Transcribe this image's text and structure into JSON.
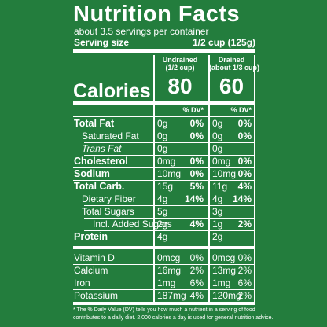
{
  "header": {
    "title": "Nutrition Facts",
    "servings": "about 3.5 servings per container",
    "serving_size_label": "Serving size",
    "serving_size": "1/2 cup (125g)"
  },
  "columns": [
    {
      "name": "Undrained",
      "portion": "(1/2 cup)",
      "calories": "80"
    },
    {
      "name": "Drained",
      "portion": "(about 1/3 cup)",
      "calories": "60"
    }
  ],
  "calories_label": "Calories",
  "dv_label": "% DV*",
  "rows": [
    [
      "Total Fat",
      "0g",
      "0%",
      "0g",
      "0%"
    ],
    [
      "Saturated Fat",
      "0g",
      "0%",
      "0g",
      "0%"
    ],
    [
      "Trans Fat",
      "0g",
      null,
      "0g",
      null
    ],
    [
      "Cholesterol",
      "0mg",
      "0%",
      "0mg",
      "0%"
    ],
    [
      "Sodium",
      "10mg",
      "0%",
      "10mg",
      "0%"
    ],
    [
      "Total Carb.",
      "15g",
      "5%",
      "11g",
      "4%"
    ],
    [
      "Dietary Fiber",
      "4g",
      "14%",
      "4g",
      "14%"
    ],
    [
      "Total Sugars",
      "5g",
      null,
      "3g",
      null
    ],
    [
      "Incl. Added Sugars",
      "2g",
      "4%",
      "1g",
      "2%"
    ],
    [
      "Protein",
      "4g",
      null,
      "2g",
      null
    ]
  ],
  "vitamins": [
    [
      "Vitamin D",
      "0mcg",
      "0%",
      "0mcg",
      "0%"
    ],
    [
      "Calcium",
      "16mg",
      "2%",
      "13mg",
      "2%"
    ],
    [
      "Iron",
      "1mg",
      "6%",
      "1mg",
      "6%"
    ],
    [
      "Potassium",
      "187mg",
      "4%",
      "120mg",
      "2%"
    ]
  ],
  "footnote": [
    "* The % Daily Value (DV) tells you how much a nutrient in a serving of food",
    "contributes to a daily diet. 2,000 calories a day is used for general nutrition advice."
  ]
}
